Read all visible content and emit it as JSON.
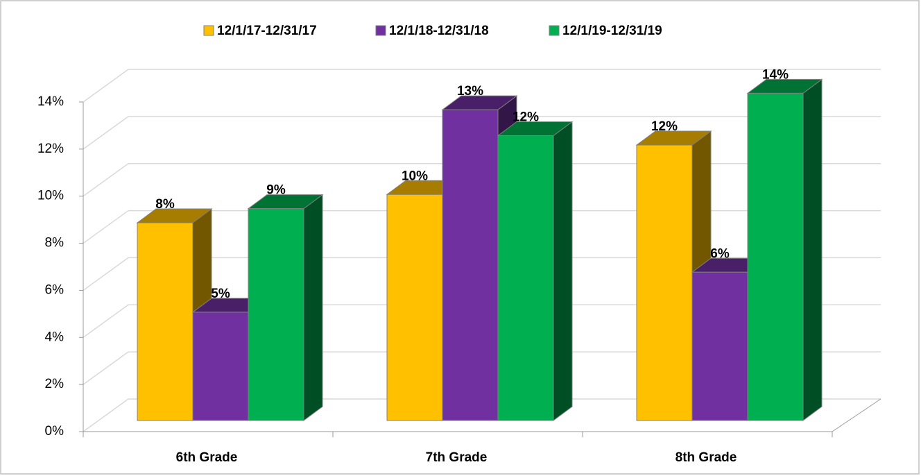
{
  "chart_data": {
    "type": "bar3d",
    "categories": [
      "6th Grade",
      "7th Grade",
      "8th Grade"
    ],
    "series": [
      {
        "name": "12/1/17-12/31/17",
        "color": "#ffc000",
        "values": [
          8.4,
          9.6,
          11.7
        ],
        "value_labels": [
          "8%",
          "10%",
          "12%"
        ]
      },
      {
        "name": "12/1/18-12/31/18",
        "color": "#7030a0",
        "values": [
          4.6,
          13.2,
          6.3
        ],
        "value_labels": [
          "5%",
          "13%",
          "6%"
        ]
      },
      {
        "name": "12/1/19-12/31/19",
        "color": "#00b050",
        "values": [
          9.0,
          12.1,
          13.9
        ],
        "value_labels": [
          "9%",
          "12%",
          "14%"
        ]
      }
    ],
    "ylim": [
      0,
      14
    ],
    "yticks": [
      {
        "value": 0,
        "label": "0%"
      },
      {
        "value": 2,
        "label": "2%"
      },
      {
        "value": 4,
        "label": "4%"
      },
      {
        "value": 6,
        "label": "6%"
      },
      {
        "value": 8,
        "label": "8%"
      },
      {
        "value": 10,
        "label": "10%"
      },
      {
        "value": 12,
        "label": "12%"
      },
      {
        "value": 14,
        "label": "14%"
      }
    ],
    "grid": true,
    "legend": "top"
  }
}
